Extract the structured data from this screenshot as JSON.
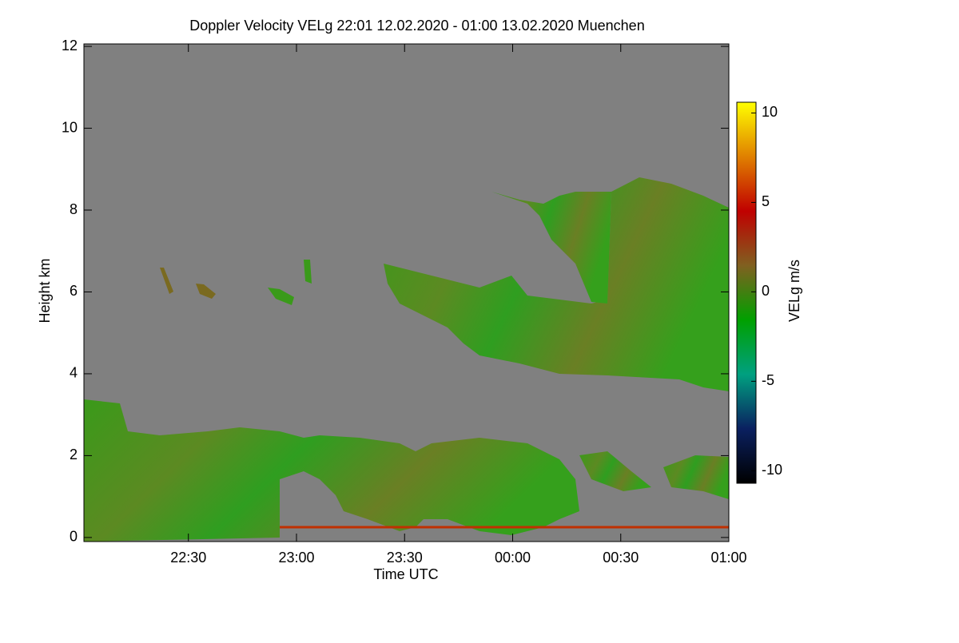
{
  "chart_data": {
    "type": "time-height",
    "title": "Doppler Velocity VELg   22:01 12.02.2020 - 01:00 13.02.2020 Muenchen",
    "x_label": "Time UTC",
    "y_label": "Height km",
    "colorbar_label": "VELg m/s",
    "xlim": [
      22.0167,
      25.0
    ],
    "xticks": [
      {
        "value": 22.5,
        "label": "22:30"
      },
      {
        "value": 23.0,
        "label": "23:00"
      },
      {
        "value": 23.5,
        "label": "23:30"
      },
      {
        "value": 24.0,
        "label": "00:00"
      },
      {
        "value": 24.5,
        "label": "00:30"
      },
      {
        "value": 25.0,
        "label": "01:00"
      }
    ],
    "ylim": [
      -0.1,
      12.06
    ],
    "yticks": [
      0,
      2,
      4,
      6,
      8,
      10,
      12
    ],
    "zlim": [
      -10.7,
      10.6
    ],
    "zticks": [
      -10,
      -5,
      0,
      5,
      10
    ],
    "colormap": [
      "#000000",
      "#0a2060",
      "#00a080",
      "#00a000",
      "#806020",
      "#c00000",
      "#e08000",
      "#ffff00"
    ],
    "background": "#808080"
  }
}
